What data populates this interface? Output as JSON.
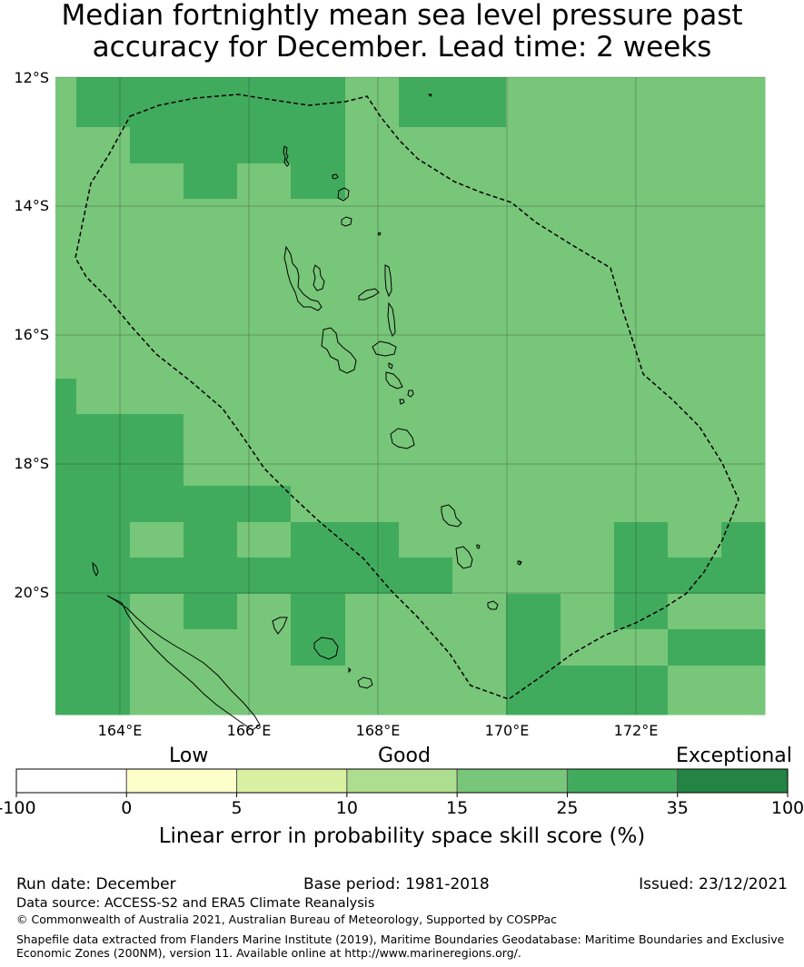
{
  "title": {
    "line1": "Median fortnightly mean sea level pressure past",
    "line2": "accuracy for December. Lead time: 2 weeks"
  },
  "map": {
    "lat_labels": [
      "12°S",
      "14°S",
      "16°S",
      "18°S",
      "20°S"
    ],
    "lon_labels": [
      "164°E",
      "166°E",
      "168°E",
      "170°E",
      "172°E"
    ],
    "colors": {
      "band_15_25": "#78c679",
      "band_25_35": "#41ab5d",
      "eez_line": "#000000",
      "coast_line": "#000000"
    },
    "grid": {
      "lon_range": [
        163,
        174
      ],
      "lat_range": [
        -12,
        -21.9
      ],
      "rows": [
        [
          1,
          2,
          2,
          2,
          2,
          2,
          1,
          2,
          2,
          1,
          1,
          1,
          1,
          1
        ],
        [
          1,
          2,
          2,
          2,
          2,
          2,
          1,
          2,
          2,
          1,
          1,
          1,
          1,
          1
        ],
        [
          1,
          1,
          2,
          2,
          2,
          2,
          1,
          1,
          1,
          1,
          1,
          1,
          1,
          1
        ],
        [
          1,
          1,
          1,
          2,
          1,
          2,
          1,
          1,
          1,
          1,
          1,
          1,
          1,
          1
        ],
        [
          1,
          1,
          1,
          1,
          1,
          1,
          1,
          1,
          1,
          1,
          1,
          1,
          1,
          1
        ],
        [
          1,
          1,
          1,
          1,
          1,
          1,
          1,
          1,
          1,
          1,
          1,
          1,
          1,
          1
        ],
        [
          1,
          1,
          1,
          1,
          1,
          1,
          1,
          1,
          1,
          1,
          1,
          1,
          1,
          1
        ],
        [
          1,
          1,
          1,
          1,
          1,
          1,
          1,
          1,
          1,
          1,
          1,
          1,
          1,
          1
        ],
        [
          1,
          1,
          1,
          1,
          1,
          1,
          1,
          1,
          1,
          1,
          1,
          1,
          1,
          1
        ],
        [
          2,
          1,
          1,
          1,
          1,
          1,
          1,
          1,
          1,
          1,
          1,
          1,
          1,
          1
        ],
        [
          2,
          2,
          2,
          1,
          1,
          1,
          1,
          1,
          1,
          1,
          1,
          1,
          1,
          1
        ],
        [
          2,
          2,
          2,
          1,
          1,
          1,
          1,
          1,
          1,
          1,
          1,
          1,
          1,
          1
        ],
        [
          2,
          2,
          2,
          2,
          2,
          1,
          1,
          1,
          1,
          1,
          1,
          1,
          1,
          1
        ],
        [
          2,
          2,
          1,
          2,
          1,
          2,
          2,
          1,
          1,
          1,
          1,
          2,
          1,
          2
        ],
        [
          2,
          2,
          2,
          2,
          2,
          2,
          2,
          2,
          1,
          1,
          1,
          2,
          2,
          2
        ],
        [
          2,
          2,
          1,
          2,
          1,
          2,
          1,
          1,
          1,
          2,
          1,
          2,
          1,
          1
        ],
        [
          2,
          2,
          1,
          1,
          1,
          2,
          1,
          1,
          1,
          2,
          1,
          1,
          2,
          2
        ],
        [
          2,
          2,
          1,
          1,
          1,
          1,
          1,
          1,
          1,
          2,
          2,
          2,
          1,
          1
        ]
      ]
    }
  },
  "colorbar": {
    "categories": [
      "Low",
      "Good",
      "Exceptional"
    ],
    "ticks": [
      "-100",
      "0",
      "5",
      "10",
      "15",
      "25",
      "35",
      "100"
    ],
    "colors": [
      "#ffffff",
      "#ffffcc",
      "#d9f0a3",
      "#addd8e",
      "#78c679",
      "#41ab5d",
      "#238443"
    ],
    "label": "Linear error in probability space skill score (%)"
  },
  "footer": {
    "run_date": "Run date: December",
    "base_period": "Base period: 1981-2018",
    "issued": "Issued: 23/12/2021",
    "data_source": "Data source: ACCESS-S2 and ERA5 Climate Reanalysis",
    "copyright": "© Commonwealth of Australia 2021, Australian Bureau of Meteorology, Supported by COSPPac",
    "shapefile_line1": "Shapefile data extracted from Flanders Marine Institute (2019), Maritime Boundaries Geodatabase: Maritime Boundaries and Exclusive",
    "shapefile_line2": "Economic Zones (200NM), version 11. Available online at http://www.marineregions.org/."
  }
}
